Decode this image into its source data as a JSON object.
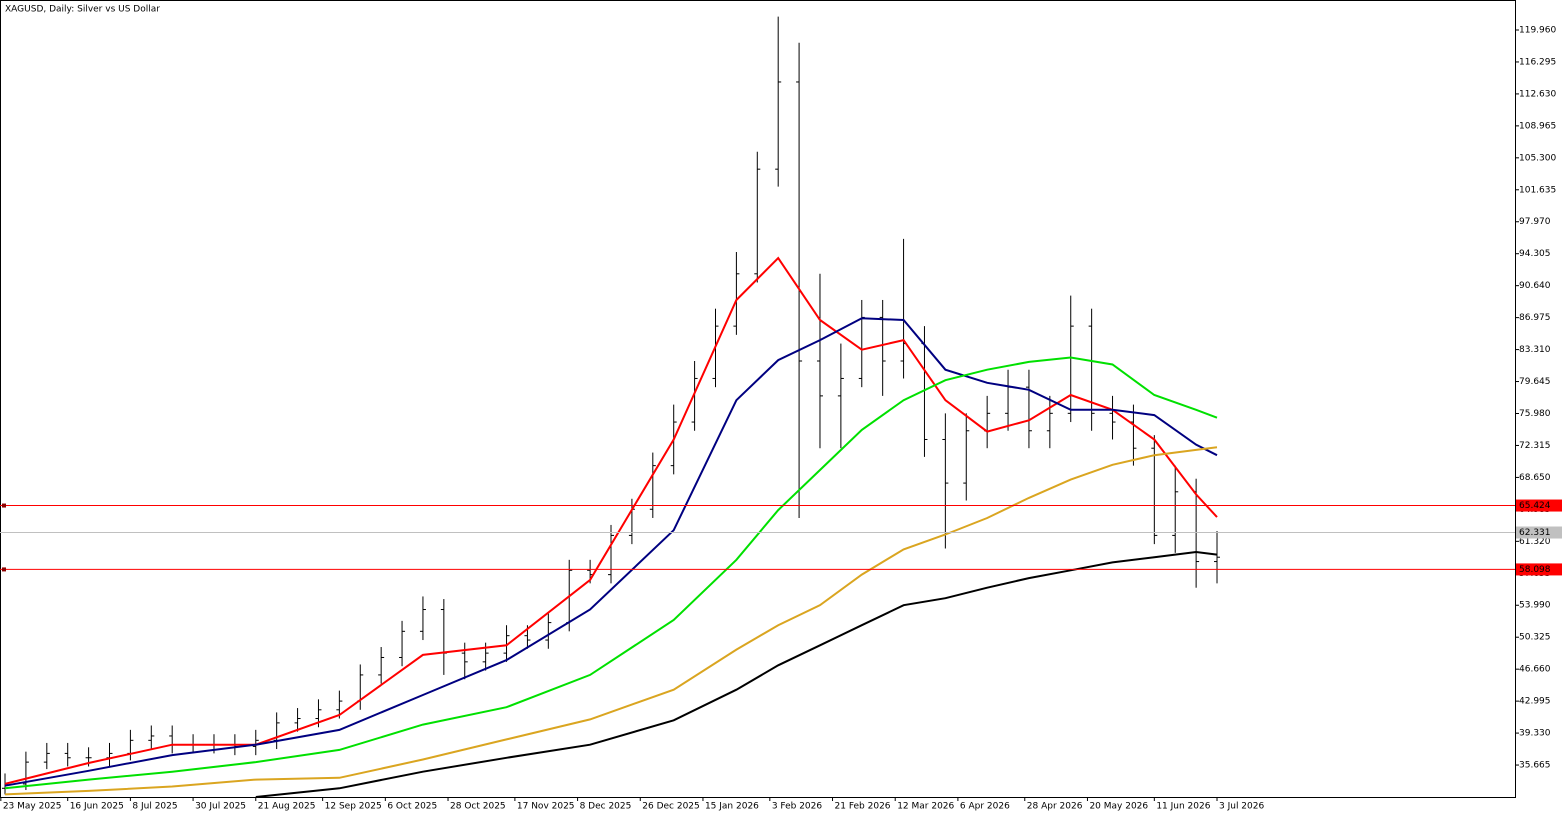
{
  "chart_data": {
    "type": "ohlc",
    "title": "XAGUSD, Daily:  Silver vs US Dollar",
    "xlim": [
      -0.2,
      362.3
    ],
    "ylim": [
      32.0,
      123.4
    ],
    "xticks": [
      {
        "value": 0,
        "label": "23 May 2025"
      },
      {
        "value": 16,
        "label": "16 Jun 2025"
      },
      {
        "value": 31,
        "label": "8 Jul 2025"
      },
      {
        "value": 46,
        "label": "30 Jul 2025"
      },
      {
        "value": 61,
        "label": "21 Aug 2025"
      },
      {
        "value": 77,
        "label": "12 Sep 2025"
      },
      {
        "value": 92,
        "label": "6 Oct 2025"
      },
      {
        "value": 107,
        "label": "28 Oct 2025"
      },
      {
        "value": 123,
        "label": "17 Nov 2025"
      },
      {
        "value": 138,
        "label": "8 Dec 2025"
      },
      {
        "value": 153,
        "label": "26 Dec 2025"
      },
      {
        "value": 168,
        "label": "15 Jan 2026"
      },
      {
        "value": 184,
        "label": "3 Feb 2026"
      },
      {
        "value": 199,
        "label": "21 Feb 2026"
      },
      {
        "value": 214,
        "label": "12 Mar 2026"
      },
      {
        "value": 229,
        "label": "6 Apr 2026"
      },
      {
        "value": 245,
        "label": "28 Apr 2026"
      },
      {
        "value": 260,
        "label": "20 May 2026"
      },
      {
        "value": 276,
        "label": "11 Jun 2026"
      },
      {
        "value": 291,
        "label": "3 Jul 2026"
      }
    ],
    "yticks": [
      {
        "value": 119.96,
        "label": "119.960"
      },
      {
        "value": 116.295,
        "label": "116.295"
      },
      {
        "value": 112.63,
        "label": "112.630"
      },
      {
        "value": 108.965,
        "label": "108.965"
      },
      {
        "value": 105.3,
        "label": "105.300"
      },
      {
        "value": 101.635,
        "label": "101.635"
      },
      {
        "value": 97.97,
        "label": "97.970"
      },
      {
        "value": 94.305,
        "label": "94.305"
      },
      {
        "value": 90.64,
        "label": "90.640"
      },
      {
        "value": 86.975,
        "label": "86.975"
      },
      {
        "value": 83.31,
        "label": "83.310"
      },
      {
        "value": 79.645,
        "label": "79.645"
      },
      {
        "value": 75.98,
        "label": "75.980"
      },
      {
        "value": 72.315,
        "label": "72.315"
      },
      {
        "value": 68.65,
        "label": "68.650"
      },
      {
        "value": 64.985,
        "label": "64.985"
      },
      {
        "value": 61.32,
        "label": "61.320"
      },
      {
        "value": 57.655,
        "label": "57.655"
      },
      {
        "value": 53.99,
        "label": "53.990"
      },
      {
        "value": 50.325,
        "label": "50.325"
      },
      {
        "value": 46.66,
        "label": "46.660"
      },
      {
        "value": 42.995,
        "label": "42.995"
      },
      {
        "value": 39.33,
        "label": "39.330"
      },
      {
        "value": 35.665,
        "label": "35.665"
      }
    ],
    "bar_color": "#000000",
    "bars": {
      "x": [
        1,
        6,
        11,
        16,
        21,
        26,
        31,
        36,
        41,
        46,
        51,
        56,
        61,
        66,
        71,
        76,
        81,
        86,
        91,
        96,
        101,
        106,
        111,
        116,
        121,
        126,
        131,
        136,
        141,
        146,
        151,
        156,
        161,
        166,
        171,
        176,
        181,
        186,
        191,
        196,
        201,
        206,
        211,
        216,
        221,
        226,
        231,
        236,
        241,
        246,
        251,
        256,
        261,
        266,
        271,
        276,
        281,
        286,
        291
      ],
      "open": [
        33,
        33.5,
        36,
        37,
        36.5,
        36.5,
        37,
        38.5,
        39,
        38,
        38,
        38,
        37.8,
        38.5,
        40.5,
        41,
        42,
        43,
        46,
        48,
        51,
        53.5,
        48.5,
        47.5,
        48.5,
        50.5,
        50,
        52,
        58,
        57.5,
        62,
        65,
        70,
        75,
        80,
        86,
        92,
        104,
        114,
        82,
        78,
        80,
        87,
        82,
        84,
        73,
        68,
        74,
        76,
        79,
        74,
        76,
        86,
        76,
        75,
        72,
        62,
        67,
        59
      ],
      "high": [
        34.7,
        37.2,
        38.2,
        38.2,
        37.7,
        38.2,
        39.7,
        40.2,
        40.2,
        39.2,
        39.2,
        39.2,
        39.7,
        41.7,
        42.2,
        43.2,
        44.2,
        47.2,
        49.2,
        52.2,
        55,
        54.7,
        49.7,
        49.7,
        51.7,
        51.7,
        53.2,
        59.2,
        59.2,
        63.2,
        66.2,
        71.5,
        77,
        82,
        88,
        94.5,
        106,
        121.5,
        118.5,
        92,
        84,
        89,
        89,
        96,
        86,
        76,
        76,
        78,
        81,
        81,
        78,
        89.5,
        88,
        78,
        77,
        73.5,
        70,
        68.5,
        62.5
      ],
      "low": [
        32.3,
        32.8,
        35.2,
        35.5,
        35.5,
        35.5,
        36.2,
        37.5,
        37,
        37,
        37,
        36.8,
        36.8,
        37.5,
        39.5,
        40,
        41,
        42,
        45,
        47,
        50,
        46,
        45.5,
        46.5,
        47.5,
        49,
        49,
        51,
        56.5,
        56.5,
        61,
        64,
        69,
        74,
        79,
        85,
        91,
        102,
        64,
        72,
        72,
        79,
        78,
        80,
        71,
        60.5,
        66,
        72,
        74,
        72,
        72,
        75,
        74,
        73,
        70,
        61,
        60,
        56,
        56.5
      ],
      "close": [
        33.5,
        36,
        37,
        36.5,
        36.5,
        37,
        38.5,
        39,
        38,
        38,
        38,
        37.8,
        38.5,
        40.5,
        41,
        42,
        43,
        46,
        48,
        51,
        53.5,
        48.5,
        47.5,
        48.5,
        50.5,
        50,
        52,
        58,
        57.5,
        62,
        65,
        70,
        75,
        80,
        86,
        92,
        104,
        114,
        82,
        78,
        80,
        87,
        82,
        84,
        73,
        68,
        74,
        76,
        79,
        74,
        76,
        86,
        76,
        75,
        72,
        62,
        67,
        59,
        59.5
      ]
    },
    "ma_x": [
      1,
      21,
      41,
      61,
      81,
      101,
      121,
      141,
      161,
      176,
      186,
      196,
      206,
      216,
      226,
      236,
      246,
      256,
      266,
      276,
      286,
      291
    ],
    "series": [
      {
        "color": "#ff0000",
        "values": [
          33.5,
          35.9,
          38,
          38,
          41.4,
          48.3,
          49.4,
          56.9,
          73,
          89,
          93.8,
          86.7,
          83.3,
          84.4,
          77.5,
          73.9,
          75.2,
          78.1,
          76.4,
          73,
          66.7,
          64.1
        ]
      },
      {
        "color": "#000080",
        "values": [
          33.3,
          35,
          36.8,
          38,
          39.7,
          43.7,
          47.7,
          53.5,
          62.6,
          77.5,
          82.1,
          84.4,
          86.9,
          86.7,
          81,
          79.5,
          78.7,
          76.4,
          76.4,
          75.8,
          72.4,
          71.2
        ]
      },
      {
        "color": "#00e000",
        "values": [
          33,
          34,
          34.9,
          36,
          37.4,
          40.3,
          42.3,
          46,
          52.3,
          59.2,
          64.9,
          69.5,
          74.1,
          77.5,
          79.8,
          81,
          81.9,
          82.4,
          81.6,
          78.1,
          76.4,
          75.5
        ]
      },
      {
        "color": "#daa520",
        "values": [
          32.3,
          32.7,
          33.2,
          34,
          34.2,
          36.3,
          38.6,
          40.9,
          44.3,
          48.9,
          51.7,
          54,
          57.5,
          60.4,
          62.1,
          64,
          66.3,
          68.4,
          70.1,
          71.2,
          71.8,
          72.1
        ]
      },
      {
        "color": "#000000",
        "values": [
          null,
          null,
          null,
          32.0,
          33,
          34.9,
          36.5,
          38,
          40.8,
          44.3,
          47.1,
          49.4,
          51.7,
          54,
          54.8,
          56,
          57.1,
          58,
          58.9,
          59.5,
          60.1,
          59.8
        ]
      }
    ],
    "price_lines": [
      {
        "value": 65.424,
        "color": "#ff0000"
      },
      {
        "value": 62.331,
        "color": "#c0c0c0"
      },
      {
        "value": 58.098,
        "color": "#ff0000"
      }
    ]
  }
}
